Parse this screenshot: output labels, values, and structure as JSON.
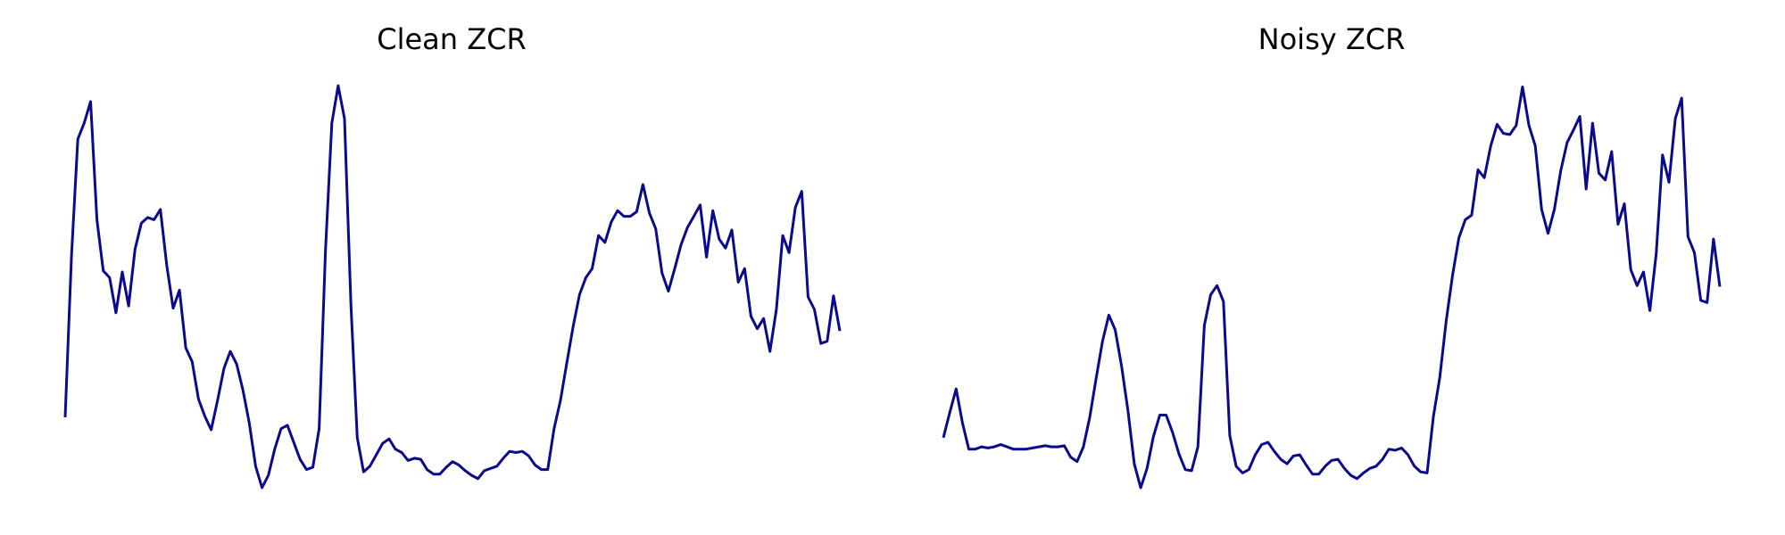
{
  "chart_data": [
    {
      "type": "line",
      "title": "Clean ZCR",
      "color": "#0a0a8c",
      "ylim": [
        0,
        380
      ],
      "values": [
        73,
        215,
        318,
        332,
        351,
        247,
        202,
        196,
        165,
        201,
        171,
        221,
        244,
        249,
        247,
        256,
        207,
        169,
        185,
        134,
        122,
        89,
        74,
        62,
        88,
        116,
        131,
        120,
        97,
        68,
        30,
        11,
        22,
        45,
        63,
        66,
        51,
        36,
        27,
        29,
        63,
        220,
        332,
        365,
        336,
        172,
        55,
        25,
        30,
        40,
        50,
        54,
        45,
        42,
        35,
        37,
        36,
        27,
        23,
        23,
        29,
        34,
        31,
        26,
        22,
        19,
        26,
        28,
        30,
        37,
        43,
        42,
        43,
        39,
        31,
        27,
        27,
        63,
        88,
        121,
        153,
        181,
        196,
        204,
        233,
        227,
        245,
        255,
        250,
        250,
        254,
        278,
        253,
        239,
        200,
        184,
        204,
        225,
        240,
        250,
        260,
        214,
        255,
        230,
        222,
        238,
        192,
        204,
        162,
        151,
        160,
        131,
        168,
        233,
        218,
        258,
        272,
        179,
        168,
        138,
        140,
        180,
        149
      ]
    },
    {
      "type": "line",
      "title": "Noisy ZCR",
      "color": "#0a0a8c",
      "ylim": [
        0,
        380
      ],
      "values": [
        55,
        77,
        98,
        68,
        45,
        45,
        47,
        46,
        47,
        49,
        47,
        45,
        45,
        45,
        46,
        47,
        48,
        47,
        47,
        48,
        38,
        34,
        47,
        73,
        107,
        140,
        163,
        150,
        118,
        79,
        32,
        11,
        28,
        56,
        75,
        75,
        60,
        41,
        27,
        26,
        47,
        154,
        181,
        189,
        175,
        57,
        30,
        24,
        27,
        40,
        49,
        51,
        43,
        36,
        32,
        39,
        40,
        31,
        23,
        23,
        30,
        35,
        36,
        28,
        22,
        19,
        24,
        28,
        30,
        36,
        45,
        44,
        46,
        40,
        30,
        25,
        24,
        74,
        108,
        158,
        198,
        231,
        247,
        251,
        291,
        284,
        312,
        331,
        323,
        322,
        330,
        364,
        330,
        312,
        256,
        235,
        256,
        290,
        315,
        326,
        338,
        274,
        332,
        288,
        282,
        307,
        243,
        261,
        203,
        189,
        201,
        167,
        217,
        304,
        280,
        336,
        354,
        232,
        218,
        176,
        174,
        230,
        188
      ]
    }
  ]
}
